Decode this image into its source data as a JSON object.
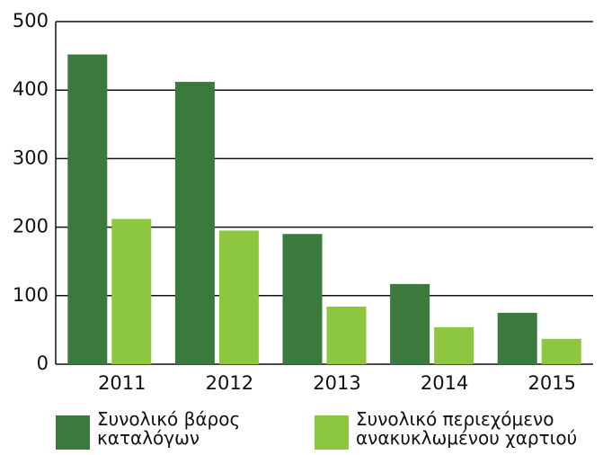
{
  "chart_data": {
    "type": "bar",
    "categories": [
      "2011",
      "2012",
      "2013",
      "2014",
      "2015"
    ],
    "series": [
      {
        "name": "Συνολικό βάρος καταλόγων",
        "color": "#3a7a3c",
        "values": [
          452,
          412,
          190,
          117,
          75
        ]
      },
      {
        "name": "Συνολικό περιεχόμενο ανακυκλωμένου χαρτιού",
        "color": "#8dc63f",
        "values": [
          212,
          195,
          84,
          54,
          37
        ]
      }
    ],
    "ylim": [
      0,
      500
    ],
    "yticks": [
      0,
      100,
      200,
      300,
      400,
      500
    ],
    "grid": true,
    "legend": "bottom"
  }
}
